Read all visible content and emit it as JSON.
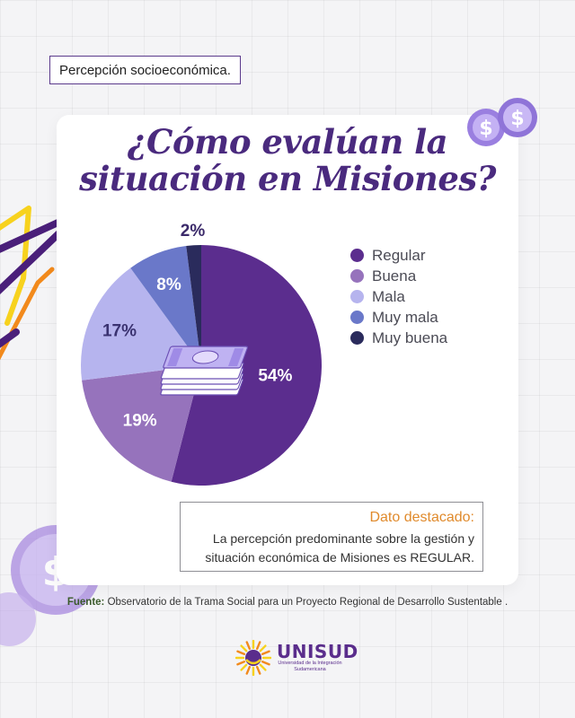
{
  "header": {
    "tag": "Percepción socioeconómica."
  },
  "title": {
    "line1": "¿Cómo evalúan la",
    "line2": "situación en Misiones?"
  },
  "chart_data": {
    "type": "pie",
    "title": "¿Cómo evalúan la situación en Misiones?",
    "categories": [
      "Regular",
      "Buena",
      "Mala",
      "Muy mala",
      "Muy buena"
    ],
    "values": [
      54,
      19,
      17,
      8,
      2
    ],
    "data_labels": [
      "54%",
      "19%",
      "17%",
      "8%",
      "2%"
    ],
    "colors": [
      "#5b2d8e",
      "#9673bc",
      "#b6b4ee",
      "#6a78c9",
      "#2a2b5c"
    ],
    "legend_position": "right",
    "start": "top, clockwise"
  },
  "highlight": {
    "title": "Dato destacado:",
    "line1": "La percepción predominante sobre la gestión y",
    "line2": "situación económica de Misiones es REGULAR."
  },
  "source": {
    "label": "Fuente:",
    "text": "Observatorio de la Trama Social para un Proyecto Regional de Desarrollo Sustentable ."
  },
  "brand": {
    "name": "UNISUD",
    "subtitle_line1": "Universidad de la Integración",
    "subtitle_line2": "Sudamericana"
  },
  "colors": {
    "title": "#4a2a7e",
    "highlight_title": "#e08a2c",
    "accent_yellow": "#f7d21e",
    "accent_orange": "#f28a1c",
    "accent_purple": "#5b2d8e"
  },
  "icons": [
    "coin-dollar-icon",
    "money-stack-icon",
    "sun-logo-icon"
  ]
}
